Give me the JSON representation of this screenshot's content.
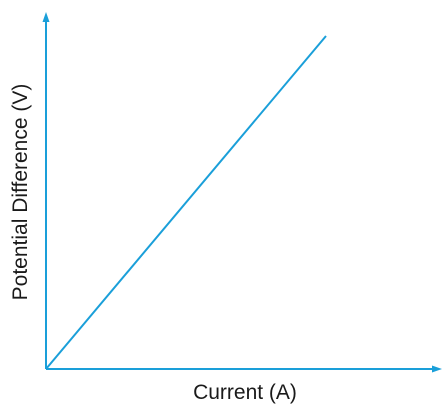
{
  "chart_data": {
    "type": "line",
    "title": "",
    "xlabel": "Current (A)",
    "ylabel": "Potential Difference (V)",
    "grid": false,
    "legend": "none",
    "ticks": "none",
    "xlim": [
      0,
      1
    ],
    "ylim": [
      0,
      1
    ],
    "series": [
      {
        "x": [
          0,
          0.7
        ],
        "y": [
          0,
          1
        ]
      }
    ],
    "colors": {
      "axis": "#1a9fd9",
      "line": "#1a9fd9",
      "text": "#1a1a1a"
    }
  }
}
